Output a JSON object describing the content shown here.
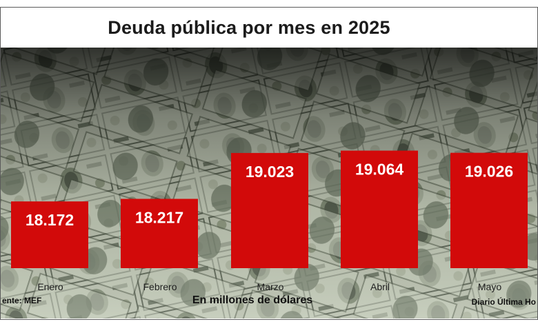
{
  "chart_data": {
    "type": "bar",
    "title": "Deuda pública por mes en 2025",
    "categories": [
      "Enero",
      "Febrero",
      "Marzo",
      "Abril",
      "Mayo"
    ],
    "values": [
      18172,
      18217,
      19023,
      19064,
      19026
    ],
    "data_labels": [
      "18.172",
      "18.217",
      "19.023",
      "19.064",
      "19.026"
    ],
    "units_label": "En millones de dólares",
    "source": "ente: MEF",
    "credit": "Diario Última Ho",
    "bar_color": "#d20a0a",
    "grid": false,
    "legend": "none"
  }
}
